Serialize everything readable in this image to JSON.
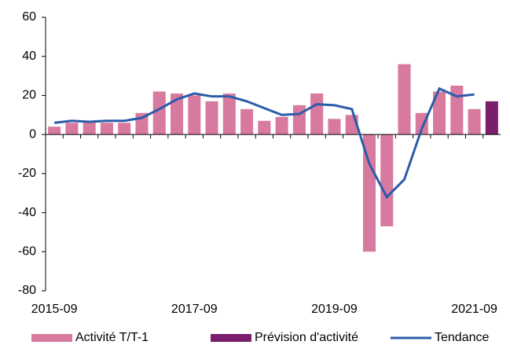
{
  "chart_data": {
    "type": "bar",
    "categories": [
      "2015-09",
      null,
      null,
      null,
      null,
      null,
      null,
      null,
      "2017-09",
      null,
      null,
      null,
      null,
      null,
      null,
      null,
      "2019-09",
      null,
      null,
      null,
      null,
      null,
      null,
      null,
      "2021-09",
      null
    ],
    "series": [
      {
        "name": "Activité T/T-1",
        "type": "bar",
        "color": "#d87a9f",
        "values": [
          4,
          6,
          7,
          6,
          6,
          11,
          22,
          21,
          20,
          17,
          21,
          13,
          7,
          9,
          15,
          21,
          8,
          10,
          -60,
          -47,
          36,
          11,
          22,
          25,
          13,
          null
        ]
      },
      {
        "name": "Prévision d'activité",
        "type": "bar",
        "color": "#7b1e6e",
        "values": [
          null,
          null,
          null,
          null,
          null,
          null,
          null,
          null,
          null,
          null,
          null,
          null,
          null,
          null,
          null,
          null,
          null,
          null,
          null,
          null,
          null,
          null,
          null,
          null,
          null,
          17
        ]
      },
      {
        "name": "Tendance",
        "type": "line",
        "color": "#2a5caa",
        "values": [
          6,
          7,
          6.5,
          7,
          7,
          8.5,
          13,
          18,
          21,
          19.5,
          19.5,
          17,
          13.5,
          10,
          10.5,
          15.5,
          15,
          13,
          -15,
          -32,
          -23,
          3,
          23.5,
          19.5,
          20.5,
          null
        ]
      }
    ],
    "ylim": [
      -80,
      60
    ],
    "yticks": [
      -80,
      -60,
      -40,
      -20,
      0,
      20,
      40,
      60
    ],
    "grid": false
  }
}
